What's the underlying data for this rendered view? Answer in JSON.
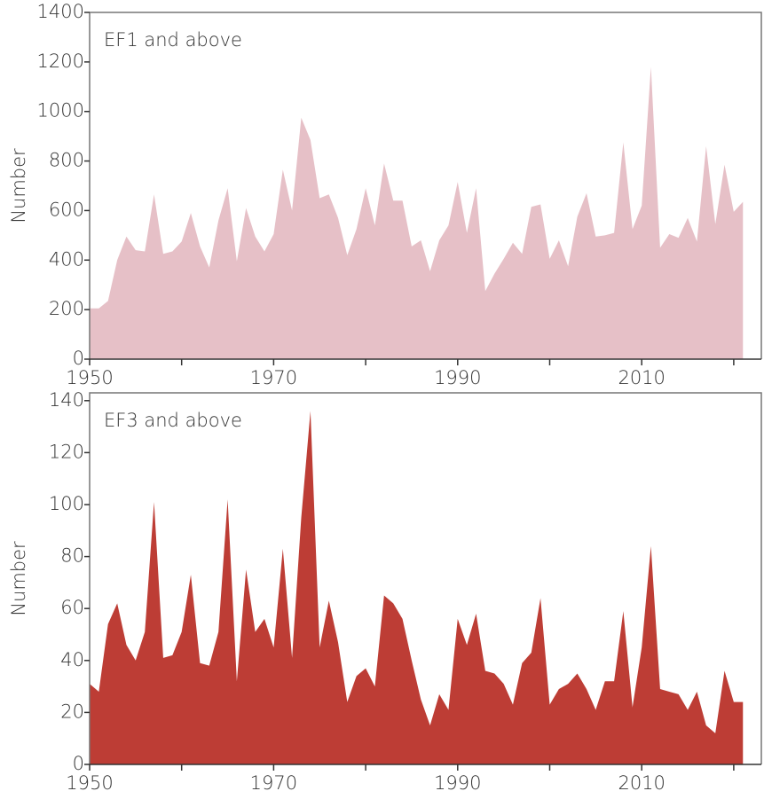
{
  "chart_data": [
    {
      "type": "area",
      "title": "EF1 and above",
      "y_label": "Number",
      "color": "#e6c0c7",
      "x": [
        1950,
        1951,
        1952,
        1953,
        1954,
        1955,
        1956,
        1957,
        1958,
        1959,
        1960,
        1961,
        1962,
        1963,
        1964,
        1965,
        1966,
        1967,
        1968,
        1969,
        1970,
        1971,
        1972,
        1973,
        1974,
        1975,
        1976,
        1977,
        1978,
        1979,
        1980,
        1981,
        1982,
        1983,
        1984,
        1985,
        1986,
        1987,
        1988,
        1989,
        1990,
        1991,
        1992,
        1993,
        1994,
        1995,
        1996,
        1997,
        1998,
        1999,
        2000,
        2001,
        2002,
        2003,
        2004,
        2005,
        2006,
        2007,
        2008,
        2009,
        2010,
        2011,
        2012,
        2013,
        2014,
        2015,
        2016,
        2017,
        2018,
        2019,
        2020,
        2021
      ],
      "values": [
        205,
        205,
        235,
        400,
        495,
        440,
        435,
        665,
        425,
        435,
        475,
        590,
        455,
        370,
        560,
        690,
        395,
        610,
        495,
        435,
        505,
        765,
        600,
        975,
        885,
        650,
        665,
        570,
        420,
        525,
        690,
        540,
        790,
        640,
        640,
        455,
        480,
        355,
        480,
        540,
        715,
        510,
        690,
        275,
        345,
        405,
        470,
        425,
        615,
        625,
        405,
        480,
        375,
        575,
        670,
        495,
        500,
        510,
        875,
        525,
        620,
        1180,
        450,
        505,
        490,
        570,
        475,
        860,
        545,
        785,
        595,
        635
      ],
      "xlim": [
        1950,
        2023
      ],
      "xticks": [
        1950,
        1970,
        1990,
        2010
      ],
      "xminorticks": [
        1960,
        1980,
        2000,
        2020
      ],
      "ylim": [
        0,
        1400
      ],
      "yticks": [
        0,
        200,
        400,
        600,
        800,
        1000,
        1200,
        1400
      ]
    },
    {
      "type": "area",
      "title": "EF3 and above",
      "y_label": "Number",
      "color": "#bd3d35",
      "x": [
        1950,
        1951,
        1952,
        1953,
        1954,
        1955,
        1956,
        1957,
        1958,
        1959,
        1960,
        1961,
        1962,
        1963,
        1964,
        1965,
        1966,
        1967,
        1968,
        1969,
        1970,
        1971,
        1972,
        1973,
        1974,
        1975,
        1976,
        1977,
        1978,
        1979,
        1980,
        1981,
        1982,
        1983,
        1984,
        1985,
        1986,
        1987,
        1988,
        1989,
        1990,
        1991,
        1992,
        1993,
        1994,
        1995,
        1996,
        1997,
        1998,
        1999,
        2000,
        2001,
        2002,
        2003,
        2004,
        2005,
        2006,
        2007,
        2008,
        2009,
        2010,
        2011,
        2012,
        2013,
        2014,
        2015,
        2016,
        2017,
        2018,
        2019,
        2020,
        2021
      ],
      "values": [
        31,
        28,
        54,
        62,
        46,
        40,
        51,
        101,
        41,
        42,
        51,
        73,
        39,
        38,
        51,
        102,
        32,
        75,
        51,
        56,
        45,
        83,
        41,
        95,
        136,
        45,
        63,
        47,
        24,
        34,
        37,
        30,
        65,
        62,
        56,
        40,
        25,
        15,
        27,
        21,
        56,
        46,
        58,
        36,
        35,
        31,
        23,
        39,
        43,
        64,
        23,
        29,
        31,
        35,
        29,
        21,
        32,
        32,
        59,
        22,
        45,
        84,
        29,
        28,
        27,
        21,
        28,
        15,
        12,
        36,
        24,
        24
      ],
      "xlim": [
        1950,
        2023
      ],
      "xticks": [
        1950,
        1970,
        1990,
        2010
      ],
      "xminorticks": [
        1960,
        1980,
        2000,
        2020
      ],
      "ylim": [
        0,
        143
      ],
      "yticks": [
        0,
        20,
        40,
        60,
        80,
        100,
        120,
        140
      ]
    }
  ]
}
